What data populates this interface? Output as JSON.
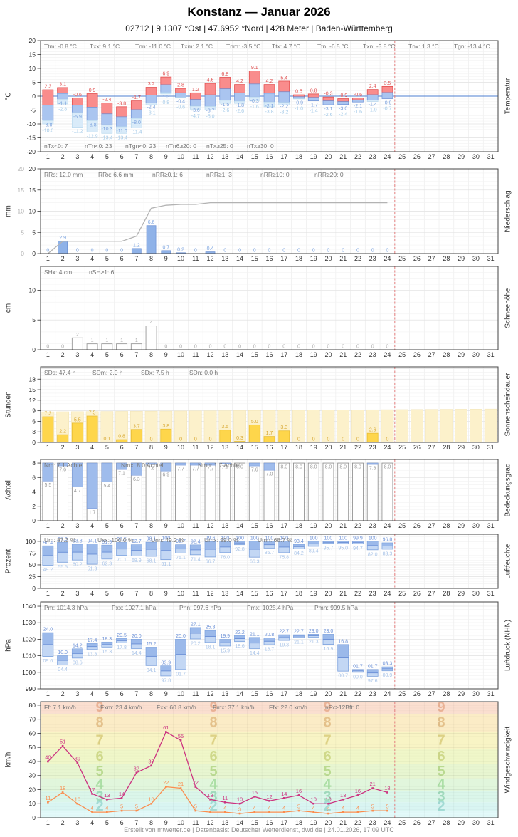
{
  "title": "Konstanz  —  Januar 2026",
  "subtitle": "02712  |  9.1307 °Ost  |  47.6952 °Nord  |  428 Meter  |  Baden-Württemberg",
  "footer": "Erstellt von mtwetter.de | Datenbasis: Deutscher Wetterdienst, dwd.de | 24.01.2026, 17:09 UTC",
  "station": {
    "id": "02712",
    "lon": "9.1307 °Ost",
    "lat": "47.6952 °Nord",
    "elevation": "428 Meter",
    "state": "Baden-Württemberg"
  },
  "days_in_month": 31,
  "days_with_data": 24,
  "current_day": 24,
  "colors": {
    "temp_max_bar": "#f98c8c",
    "temp_max_stroke": "#e04a4a",
    "temp_max_label": "#e05252",
    "temp_min_bar": "#aac5f0",
    "temp_min_stroke": "#7193d6",
    "temp_min_label": "#7ba1dd",
    "temp_ground_bar": "#d9ebf9",
    "temp_ground_stroke": "#b9d9ee",
    "temp_ground_label": "#a6cbe8",
    "zero_line": "#4d7fd0",
    "precip_bar": "#8fb2e8",
    "precip_label": "#7aa3e0",
    "cumulative_line": "#b3b3b3",
    "snow_stroke": "#999999",
    "snow_label": "#aaaaaa",
    "sun_bar": "#fed64b",
    "sun_stroke": "#e8bd35",
    "sun_label": "#d8a832",
    "sun_band": "#fcf1cb",
    "cloud_clear": "#9fbcec",
    "cloud_label": "#999999",
    "range_bar_fill": "#c3d7f4",
    "range_bar_upper": "#9bb9ea",
    "range_bar_stroke": "#7ba1dd",
    "wind_gust_line": "#cc3380",
    "wind_mean_line": "#fb8d4e",
    "today_line": "#e57f7f",
    "stats_text": "#777777"
  },
  "chart_data": [
    {
      "id": "temperature",
      "type": "bar",
      "title_right": "Temperatur",
      "unit_left": "°C",
      "ylim": [
        -20,
        20
      ],
      "yticks": [
        20,
        15,
        10,
        5,
        0,
        -5,
        -10,
        -15,
        -20
      ],
      "stats": [
        "Ttm: -0.8 °C",
        "Txx: 9.1 °C",
        "Tnn: -11.0 °C",
        "Txm: 2.1 °C",
        "Tnm: -3.5 °C",
        "Ttx: 4.7 °C",
        "Ttn: -6.5 °C",
        "Txn: -3.8 °C",
        "Tnx: 1.3 °C",
        "Tgn: -13.4 °C"
      ],
      "stats_bottom": [
        "nTx<0: 7",
        "nTn<0: 23",
        "nTgn<0: 23",
        "nTn6≥20: 0",
        "nTx≥25: 0",
        "nTx≥30: 0"
      ],
      "series": {
        "tmax": [
          2.3,
          3.1,
          -0.6,
          0.9,
          -2.4,
          -3.8,
          -1.7,
          3.2,
          6.9,
          2.8,
          1.2,
          4.6,
          6.8,
          4.2,
          9.1,
          4.2,
          5.4,
          0.5,
          0.8,
          -0.3,
          -0.9,
          -0.6,
          2.4,
          3.5
        ],
        "tmin": [
          -8.8,
          -1.1,
          -5.9,
          -8.8,
          -10.3,
          -11.0,
          -8.0,
          -2.4,
          1.3,
          -0.4,
          -3.6,
          -3.7,
          -1.5,
          -1.8,
          -0.3,
          -2.1,
          -2.2,
          -0.9,
          -1.7,
          -3.1,
          -3.0,
          -2.1,
          -1.4,
          -0.9
        ],
        "tground": [
          -10.0,
          -2.8,
          -11.2,
          -12.9,
          -13.4,
          -13.4,
          -11.4,
          -3.1,
          0.8,
          -0.6,
          -4.7,
          -5.0,
          -2.6,
          -2.6,
          -1.6,
          -3.8,
          -3.2,
          -1.0,
          -1.4,
          -2.6,
          -2.4,
          -1.6,
          -1.9,
          -0.7
        ]
      }
    },
    {
      "id": "precipitation",
      "type": "bar",
      "title_right": "Niederschlag",
      "unit_left": "mm",
      "ylim": [
        0,
        20
      ],
      "yticks": [
        20,
        15,
        10,
        5,
        0
      ],
      "yticks_secondary": [
        20,
        15,
        10,
        5,
        0
      ],
      "stats": [
        "RRs: 12.0 mm",
        "RRx: 6.6 mm",
        "nRR≥0.1: 6",
        "nRR≥1: 3",
        "nRR≥10: 0",
        "nRR≥20: 0"
      ],
      "series": {
        "daily": [
          0,
          2.9,
          0,
          0,
          0,
          0,
          1.2,
          6.6,
          0.7,
          0.2,
          0,
          0.4,
          0,
          0,
          0,
          0,
          0,
          0,
          0,
          0,
          0,
          0,
          0,
          0
        ],
        "cumulative": [
          0,
          2.9,
          2.9,
          2.9,
          2.9,
          2.9,
          4.1,
          10.7,
          11.4,
          11.6,
          11.6,
          12.0,
          12.0,
          12.0,
          12.0,
          12.0,
          12.0,
          12.0,
          12.0,
          12.0,
          12.0,
          12.0,
          12.0,
          12.0
        ]
      }
    },
    {
      "id": "snow",
      "type": "bar",
      "title_right": "Schneehöhe",
      "unit_left": "cm",
      "ylim": [
        0,
        14
      ],
      "yticks": [
        10,
        5,
        0
      ],
      "stats": [
        "SHx: 4 cm",
        "nSH≥1: 6"
      ],
      "series": {
        "depth": [
          0,
          0,
          2,
          1,
          1,
          1,
          1,
          4,
          0,
          0,
          0,
          0,
          0,
          0,
          0,
          0,
          0,
          0,
          0,
          0,
          0,
          0,
          0,
          0
        ]
      }
    },
    {
      "id": "sunshine",
      "type": "bar",
      "title_right": "Sonnenscheindauer",
      "unit_left": "Stunden",
      "ylim": [
        0,
        21.5
      ],
      "yticks": [
        18,
        15,
        12,
        9,
        6,
        3,
        0
      ],
      "stats": [
        "SDs: 47.4 h",
        "SDm: 2.0 h",
        "SDx: 7.5 h",
        "SDn: 0.0 h"
      ],
      "series": {
        "hours": [
          7.3,
          2.2,
          5.5,
          7.5,
          0.1,
          0.8,
          3.7,
          0,
          3.8,
          0,
          0,
          0,
          3.5,
          0.3,
          5.0,
          1.7,
          3.3,
          0,
          0,
          0,
          0,
          0,
          2.6,
          0
        ]
      },
      "daylight_band": {
        "start": 8.7,
        "end": 9.5
      }
    },
    {
      "id": "cloud",
      "type": "bar",
      "title_right": "Bedeckungsgrad",
      "unit_left": "Achtel",
      "ylim": [
        0,
        8.5
      ],
      "yticks": [
        8,
        6,
        4,
        2,
        0
      ],
      "stats": [
        "Nm: 7.1 Achtel",
        "Nmx: 8.0 Achtel",
        "Nmn: 1.7 Achtel"
      ],
      "series": {
        "octas": [
          5.5,
          7.6,
          4.7,
          1.7,
          5.4,
          7.1,
          6.3,
          7.8,
          6.9,
          7.7,
          7.7,
          7.7,
          7.9,
          8.0,
          7.6,
          7.0,
          8.0,
          8.0,
          8.0,
          8.0,
          8.0,
          8.0,
          7.8,
          8.0
        ]
      }
    },
    {
      "id": "humidity",
      "type": "range-bar",
      "title_right": "Luftfeuchte",
      "unit_left": "Prozent",
      "ylim": [
        0,
        115
      ],
      "yticks": [
        100,
        75,
        50,
        25,
        0
      ],
      "stats": [
        "Um: 87.3 %",
        "Uxx: 100.0 %",
        "Unn: 49.2 %",
        "Umx: 99.0 %",
        "Umn: 68.7 %"
      ],
      "series": {
        "max": [
          90.4,
          97.9,
          93.8,
          94.1,
          91.9,
          97.5,
          92.7,
          98.1,
          100,
          92.7,
          92.4,
          99.6,
          100,
          100,
          100,
          100,
          100,
          93.4,
          100,
          100,
          100,
          99.9,
          100,
          96.8
        ],
        "min": [
          49.2,
          55.5,
          60.2,
          51.3,
          62.3,
          70.1,
          68.9,
          68.1,
          61.1,
          75.1,
          71.4,
          66.7,
          76.0,
          92.8,
          66.3,
          85.7,
          75.8,
          84.2,
          89.4,
          95.7,
          95.0,
          94.7,
          82.0,
          83.3
        ]
      }
    },
    {
      "id": "pressure",
      "type": "range-bar",
      "title_right": "Luftdruck (NHN)",
      "unit_left": "hPa",
      "ylim": [
        990,
        1042.6
      ],
      "yticks": [
        1040,
        1030,
        1020,
        1010,
        1000,
        990
      ],
      "stats": [
        "Pm: 1014.3 hPa",
        "Pxx: 1027.1 hPa",
        "Pnn: 997.6 hPa",
        "Pmx: 1025.4 hPa",
        "Pmn: 999.5 hPa"
      ],
      "series": {
        "max": [
          1024.0,
          1010.0,
          1014.2,
          1017.4,
          1018.3,
          1020.5,
          1020.0,
          1015.2,
          1003.9,
          1020.0,
          1027.1,
          1025.3,
          1019.9,
          1022.2,
          1021.1,
          1020.8,
          1022.7,
          1022.7,
          1023.0,
          1023.0,
          1016.8,
          1001.7,
          1001.7,
          1003.3
        ],
        "min": [
          1009.6,
          1004.4,
          1008.6,
          1013.8,
          1015.3,
          1017.8,
          1014.4,
          1004.1,
          997.8,
          1001.7,
          1020.2,
          1018.1,
          1015.9,
          1018.6,
          1014.4,
          1016.7,
          1019.3,
          1021.1,
          1021.3,
          1016.9,
          1000.7,
          1000.0,
          997.6,
          1000.9
        ]
      }
    },
    {
      "id": "wind",
      "type": "line",
      "title_right": "Windgeschwindigkeit",
      "unit_left": "km/h",
      "ylim": [
        0,
        82.5
      ],
      "yticks": [
        80,
        70,
        60,
        50,
        40,
        30,
        20,
        10,
        0
      ],
      "stats": [
        "Ff: 7.1 km/h",
        "Fxm: 23.4 km/h",
        "Fxx: 60.8 km/h",
        "Fmx: 37.1 km/h",
        "Ffx: 22.0 km/h",
        "nFx≥12Bft: 0"
      ],
      "series": {
        "gust_max": [
          40,
          51,
          39,
          17,
          13,
          14,
          32,
          37,
          61,
          55,
          22,
          13,
          11,
          10,
          15,
          12,
          14,
          16,
          10,
          10,
          13,
          16,
          21,
          18
        ],
        "mean": [
          11,
          18,
          10,
          4,
          4,
          5,
          5,
          10,
          22,
          21,
          5,
          4,
          4,
          3,
          4,
          4,
          4,
          5,
          4,
          3,
          4,
          4,
          5,
          5
        ]
      },
      "beaufort_bands": [
        {
          "bft": 1,
          "from": 0,
          "to": 5,
          "color": "#e3fafa",
          "label_color": null
        },
        {
          "bft": 2,
          "from": 5,
          "to": 11,
          "color": "#d9f5f2",
          "label_color": "#a3dcd5"
        },
        {
          "bft": 3,
          "from": 11,
          "to": 19,
          "color": "#dbf6ea",
          "label_color": "#a2dcbe"
        },
        {
          "bft": 4,
          "from": 19,
          "to": 28,
          "color": "#e1f6dc",
          "label_color": "#abdfa5"
        },
        {
          "bft": 5,
          "from": 28,
          "to": 38,
          "color": "#e8f6d1",
          "label_color": "#bcdc92"
        },
        {
          "bft": 6,
          "from": 38,
          "to": 49,
          "color": "#f0f7c9",
          "label_color": "#d0da8b"
        },
        {
          "bft": 7,
          "from": 49,
          "to": 61,
          "color": "#f8f4c5",
          "label_color": "#ded285"
        },
        {
          "bft": 8,
          "from": 61,
          "to": 74,
          "color": "#fbecc6",
          "label_color": "#e5c28c"
        },
        {
          "bft": 9,
          "from": 74,
          "to": 88,
          "color": "#fbdfd0",
          "label_color": "#ecb497"
        }
      ]
    }
  ]
}
